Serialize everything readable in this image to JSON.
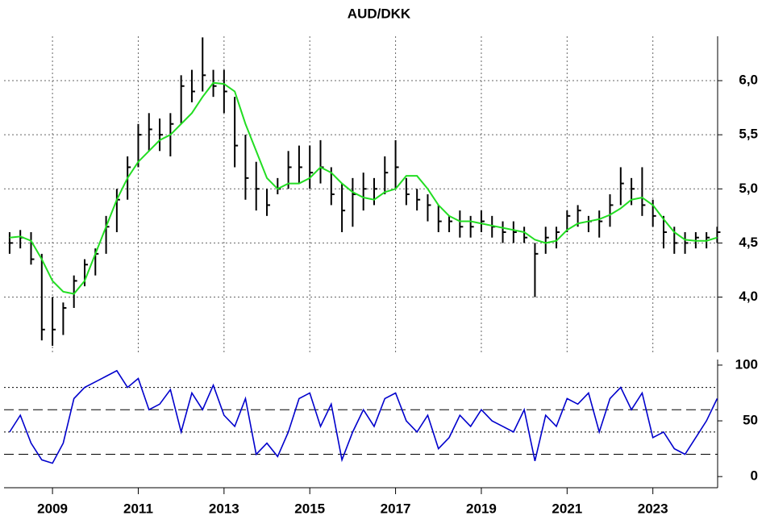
{
  "chart_data": [
    {
      "type": "ohlc",
      "title": "AUD/DKK",
      "color": "#000000",
      "x": [
        2008,
        2008.25,
        2008.5,
        2008.75,
        2009,
        2009.25,
        2009.5,
        2009.75,
        2010,
        2010.25,
        2010.5,
        2010.75,
        2011,
        2011.25,
        2011.5,
        2011.75,
        2012,
        2012.25,
        2012.5,
        2012.75,
        2013,
        2013.25,
        2013.5,
        2013.75,
        2014,
        2014.25,
        2014.5,
        2014.75,
        2015,
        2015.25,
        2015.5,
        2015.75,
        2016,
        2016.25,
        2016.5,
        2016.75,
        2017,
        2017.25,
        2017.5,
        2017.75,
        2018,
        2018.25,
        2018.5,
        2018.75,
        2019,
        2019.25,
        2019.5,
        2019.75,
        2020,
        2020.25,
        2020.5,
        2020.75,
        2021,
        2021.25,
        2021.5,
        2021.75,
        2022,
        2022.25,
        2022.5,
        2022.75,
        2023,
        2023.25,
        2023.5,
        2023.75,
        2024,
        2024.25,
        2024.5
      ],
      "high": [
        4.6,
        4.62,
        4.6,
        4.4,
        4.0,
        3.95,
        4.2,
        4.35,
        4.45,
        4.75,
        5.0,
        5.3,
        5.6,
        5.7,
        5.65,
        5.7,
        6.05,
        6.1,
        6.4,
        6.1,
        6.1,
        5.85,
        5.5,
        5.25,
        5.0,
        5.1,
        5.35,
        5.4,
        5.4,
        5.45,
        5.2,
        5.05,
        5.1,
        5.15,
        5.1,
        5.3,
        5.45,
        5.1,
        5.0,
        4.95,
        4.85,
        4.75,
        4.8,
        4.75,
        4.8,
        4.75,
        4.7,
        4.7,
        4.65,
        4.5,
        4.65,
        4.65,
        4.8,
        4.85,
        4.75,
        4.8,
        4.95,
        5.2,
        5.1,
        5.2,
        4.9,
        4.75,
        4.65,
        4.6,
        4.6,
        4.6,
        4.65
      ],
      "low": [
        4.4,
        4.45,
        4.3,
        3.6,
        3.55,
        3.65,
        3.9,
        4.1,
        4.2,
        4.4,
        4.6,
        4.9,
        5.2,
        5.35,
        5.35,
        5.3,
        5.6,
        5.8,
        5.9,
        5.85,
        5.7,
        5.2,
        4.9,
        4.8,
        4.75,
        4.95,
        5.0,
        5.05,
        5.0,
        5.05,
        4.85,
        4.6,
        4.65,
        4.8,
        4.85,
        4.95,
        5.0,
        4.85,
        4.8,
        4.7,
        4.6,
        4.6,
        4.55,
        4.55,
        4.6,
        4.55,
        4.5,
        4.5,
        4.5,
        4.0,
        4.4,
        4.45,
        4.6,
        4.65,
        4.6,
        4.55,
        4.65,
        4.85,
        4.85,
        4.75,
        4.65,
        4.45,
        4.4,
        4.4,
        4.45,
        4.45,
        4.5
      ],
      "close": [
        4.5,
        4.55,
        4.35,
        3.7,
        3.7,
        3.9,
        4.15,
        4.3,
        4.4,
        4.65,
        4.9,
        5.2,
        5.5,
        5.55,
        5.5,
        5.6,
        5.95,
        5.9,
        6.05,
        5.95,
        5.9,
        5.4,
        5.1,
        5.0,
        4.85,
        5.0,
        5.2,
        5.2,
        5.15,
        5.2,
        4.95,
        4.8,
        4.95,
        5.0,
        5.0,
        5.15,
        5.2,
        4.95,
        4.9,
        4.85,
        4.7,
        4.7,
        4.65,
        4.65,
        4.7,
        4.65,
        4.6,
        4.6,
        4.55,
        4.4,
        4.55,
        4.6,
        4.75,
        4.8,
        4.7,
        4.7,
        4.85,
        5.05,
        5.0,
        4.85,
        4.75,
        4.6,
        4.5,
        4.5,
        4.55,
        4.55,
        4.6
      ],
      "overlay": {
        "color": "#22dd22",
        "values": [
          4.55,
          4.56,
          4.52,
          4.35,
          4.15,
          4.05,
          4.03,
          4.15,
          4.4,
          4.65,
          4.9,
          5.1,
          5.25,
          5.35,
          5.45,
          5.5,
          5.6,
          5.7,
          5.85,
          5.98,
          5.97,
          5.9,
          5.6,
          5.35,
          5.1,
          5.0,
          5.05,
          5.05,
          5.1,
          5.2,
          5.15,
          5.05,
          4.97,
          4.92,
          4.9,
          4.97,
          5.0,
          5.12,
          5.12,
          5.0,
          4.85,
          4.75,
          4.7,
          4.7,
          4.68,
          4.66,
          4.64,
          4.62,
          4.6,
          4.53,
          4.5,
          4.52,
          4.62,
          4.68,
          4.7,
          4.72,
          4.76,
          4.82,
          4.9,
          4.92,
          4.85,
          4.72,
          4.6,
          4.53,
          4.52,
          4.52,
          4.55
        ]
      },
      "xlim": [
        2007.87,
        2024.51
      ],
      "xticks": [
        2009,
        2011,
        2013,
        2015,
        2017,
        2019,
        2021,
        2023
      ],
      "ylim": [
        3.49,
        6.41
      ],
      "yticks": [
        {
          "value": 4,
          "label": "4,0"
        },
        {
          "value": 4.5,
          "label": "4,5"
        },
        {
          "value": 5,
          "label": "5,0"
        },
        {
          "value": 5.5,
          "label": "5,5"
        },
        {
          "value": 6,
          "label": "6,0"
        }
      ],
      "grid": true
    },
    {
      "type": "line",
      "color": "#0000cc",
      "x": [
        2008,
        2008.25,
        2008.5,
        2008.75,
        2009,
        2009.25,
        2009.5,
        2009.75,
        2010,
        2010.25,
        2010.5,
        2010.75,
        2011,
        2011.25,
        2011.5,
        2011.75,
        2012,
        2012.25,
        2012.5,
        2012.75,
        2013,
        2013.25,
        2013.5,
        2013.75,
        2014,
        2014.25,
        2014.5,
        2014.75,
        2015,
        2015.25,
        2015.5,
        2015.75,
        2016,
        2016.25,
        2016.5,
        2016.75,
        2017,
        2017.25,
        2017.5,
        2017.75,
        2018,
        2018.25,
        2018.5,
        2018.75,
        2019,
        2019.25,
        2019.5,
        2019.75,
        2020,
        2020.25,
        2020.5,
        2020.75,
        2021,
        2021.25,
        2021.5,
        2021.75,
        2022,
        2022.25,
        2022.5,
        2022.75,
        2023,
        2023.25,
        2023.5,
        2023.75,
        2024,
        2024.25,
        2024.5
      ],
      "values": [
        40,
        55,
        30,
        15,
        12,
        30,
        70,
        80,
        85,
        90,
        95,
        80,
        88,
        60,
        65,
        78,
        40,
        75,
        60,
        82,
        55,
        45,
        70,
        20,
        30,
        18,
        40,
        70,
        75,
        45,
        65,
        15,
        40,
        60,
        45,
        70,
        75,
        50,
        40,
        55,
        25,
        35,
        55,
        45,
        60,
        50,
        45,
        40,
        60,
        14,
        55,
        45,
        70,
        65,
        75,
        40,
        70,
        80,
        60,
        75,
        35,
        40,
        25,
        20,
        35,
        50,
        70
      ],
      "xlim": [
        2007.87,
        2024.51
      ],
      "xticks": [
        2009,
        2011,
        2013,
        2015,
        2017,
        2019,
        2021,
        2023
      ],
      "ylim": [
        -10,
        105
      ],
      "yticks": [
        0,
        50,
        100
      ],
      "hlines": [
        {
          "value": 80,
          "style": "dotted"
        },
        {
          "value": 60,
          "style": "dashed"
        },
        {
          "value": 40,
          "style": "dotted"
        },
        {
          "value": 20,
          "style": "dashed"
        }
      ]
    }
  ]
}
